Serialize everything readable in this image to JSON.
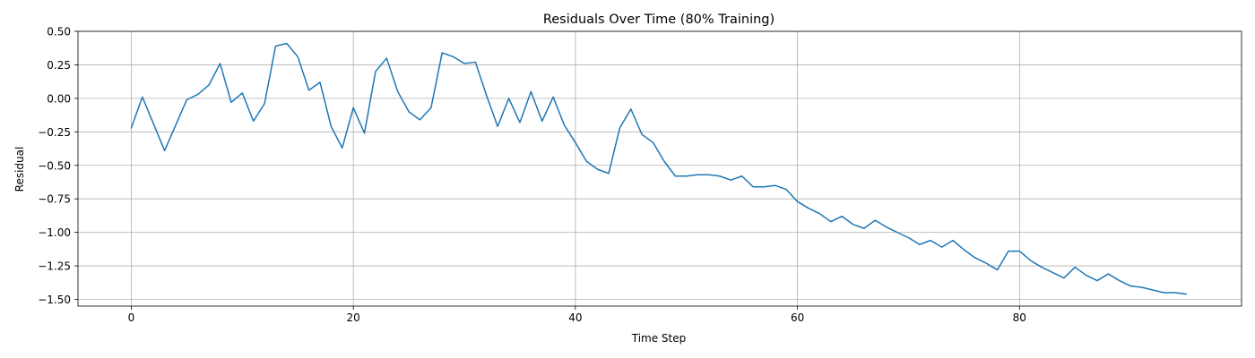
{
  "chart_data": {
    "type": "line",
    "title": "Residuals Over Time (80% Training)",
    "xlabel": "Time Step",
    "ylabel": "Residual",
    "xlim": [
      -4.8,
      100
    ],
    "ylim": [
      -1.55,
      0.5
    ],
    "xticks": [
      0,
      20,
      40,
      60,
      80
    ],
    "yticks": [
      0.5,
      0.25,
      0.0,
      -0.25,
      -0.5,
      -0.75,
      -1.0,
      -1.25,
      -1.5
    ],
    "ytick_labels": [
      "0.50",
      "0.25",
      "0.00",
      "−0.25",
      "−0.50",
      "−0.75",
      "−1.00",
      "−1.25",
      "−1.50"
    ],
    "xtick_labels": [
      "0",
      "20",
      "40",
      "60",
      "80"
    ],
    "grid": true,
    "series": [
      {
        "color": "#1f77b4",
        "x": [
          0,
          1,
          2,
          3,
          4,
          5,
          6,
          7,
          8,
          9,
          10,
          11,
          12,
          13,
          14,
          15,
          16,
          17,
          18,
          19,
          20,
          21,
          22,
          23,
          24,
          25,
          26,
          27,
          28,
          29,
          30,
          31,
          32,
          33,
          34,
          35,
          36,
          37,
          38,
          39,
          40,
          41,
          42,
          43,
          44,
          45,
          46,
          47,
          48,
          49,
          50,
          51,
          52,
          53,
          54,
          55,
          56,
          57,
          58,
          59,
          60,
          61,
          62,
          63,
          64,
          65,
          66,
          67,
          68,
          69,
          70,
          71,
          72,
          73,
          74,
          75,
          76,
          77,
          78,
          79,
          80,
          81,
          82,
          83,
          84,
          85,
          86,
          87,
          88,
          89,
          90,
          91,
          92,
          93,
          94,
          95
        ],
        "y": [
          -0.22,
          0.01,
          -0.19,
          -0.39,
          -0.2,
          -0.01,
          0.03,
          0.1,
          0.26,
          -0.03,
          0.04,
          -0.17,
          -0.04,
          0.39,
          0.41,
          0.31,
          0.06,
          0.12,
          -0.21,
          -0.37,
          -0.07,
          -0.26,
          0.2,
          0.3,
          0.05,
          -0.1,
          -0.16,
          -0.07,
          0.34,
          0.31,
          0.26,
          0.27,
          0.02,
          -0.21,
          0.0,
          -0.18,
          0.05,
          -0.17,
          0.01,
          -0.2,
          -0.33,
          -0.47,
          -0.53,
          -0.56,
          -0.22,
          -0.08,
          -0.27,
          -0.33,
          -0.47,
          -0.58,
          -0.58,
          -0.57,
          -0.57,
          -0.58,
          -0.61,
          -0.58,
          -0.66,
          -0.66,
          -0.65,
          -0.68,
          -0.77,
          -0.82,
          -0.86,
          -0.92,
          -0.88,
          -0.94,
          -0.97,
          -0.91,
          -0.96,
          -1.0,
          -1.04,
          -1.09,
          -1.06,
          -1.11,
          -1.06,
          -1.13,
          -1.19,
          -1.23,
          -1.28,
          -1.14,
          -1.14,
          -1.21,
          -1.26,
          -1.3,
          -1.34,
          -1.26,
          -1.32,
          -1.36,
          -1.31,
          -1.36,
          -1.4,
          -1.41,
          -1.43,
          -1.45,
          -1.45,
          -1.46
        ]
      }
    ]
  }
}
